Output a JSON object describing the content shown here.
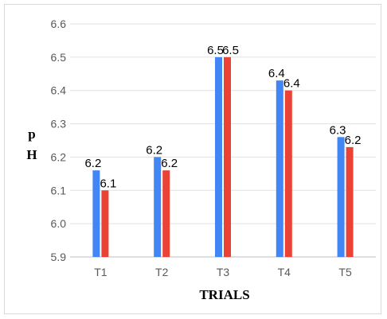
{
  "chart_data": {
    "type": "bar",
    "title": "",
    "xlabel": "TRIALS",
    "ylabel": "pH",
    "ylabel_lines": [
      "p",
      "H"
    ],
    "categories": [
      "T1",
      "T2",
      "T3",
      "T4",
      "T5"
    ],
    "ylim": [
      5.9,
      6.6
    ],
    "yticks": [
      "5.9",
      "6.0",
      "6.1",
      "6.2",
      "6.3",
      "6.4",
      "6.5",
      "6.6"
    ],
    "grid": true,
    "legend": "none",
    "series": [
      {
        "color": "#4285f4",
        "values": [
          6.16,
          6.2,
          6.5,
          6.43,
          6.26
        ],
        "labels": [
          "6.2",
          "6.2",
          "6.5",
          "6.4",
          "6.3"
        ]
      },
      {
        "color": "#ea4335",
        "values": [
          6.1,
          6.16,
          6.5,
          6.4,
          6.23
        ],
        "labels": [
          "6.1",
          "6.2",
          "6.5",
          "6.4",
          "6.2"
        ]
      }
    ]
  }
}
